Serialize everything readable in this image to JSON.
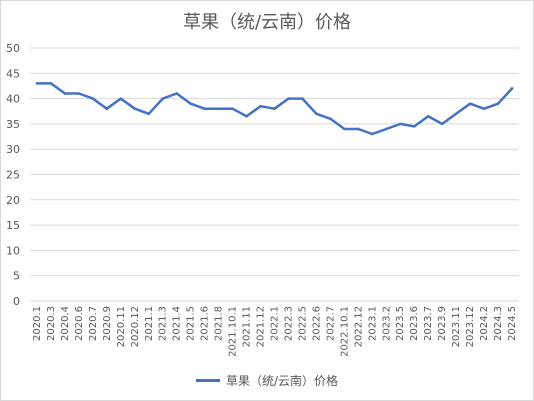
{
  "colors": {
    "line": "#4472C4",
    "grid": "#d9d9d9",
    "text": "#595959"
  },
  "chart_data": {
    "type": "line",
    "title": "草果（统/云南）价格",
    "xlabel": "",
    "ylabel": "",
    "ylim": [
      0,
      50
    ],
    "yticks": [
      0,
      5,
      10,
      15,
      20,
      25,
      30,
      35,
      40,
      45,
      50
    ],
    "grid": true,
    "legend": "bottom",
    "categories": [
      "2020.1",
      "2020.3",
      "2020.4",
      "2020.6",
      "2020.7",
      "2020.9",
      "2020.11",
      "2020.12",
      "2021.1",
      "2021.3",
      "2021.4",
      "2021.5",
      "2021.6",
      "2021.8",
      "2021.10.1",
      "2021.11",
      "2021.12",
      "2022.1",
      "2022.3",
      "2022.5",
      "2022.6",
      "2022.7",
      "2022.10.1",
      "2022.12",
      "2023.1",
      "2023.2",
      "2023.5",
      "2023.6",
      "2023.7",
      "2023.9",
      "2023.11",
      "2023.12",
      "2024.2",
      "2024.3",
      "2024.5"
    ],
    "series": [
      {
        "name": "草果（统/云南）价格",
        "values": [
          43,
          43,
          41,
          41,
          40,
          38,
          40,
          38,
          37,
          40,
          41,
          39,
          38,
          38,
          38,
          36.5,
          38.5,
          38,
          40,
          40,
          37,
          36,
          34,
          34,
          33,
          34,
          35,
          34.5,
          36.5,
          35,
          37,
          39,
          38,
          39,
          42
        ]
      }
    ]
  }
}
